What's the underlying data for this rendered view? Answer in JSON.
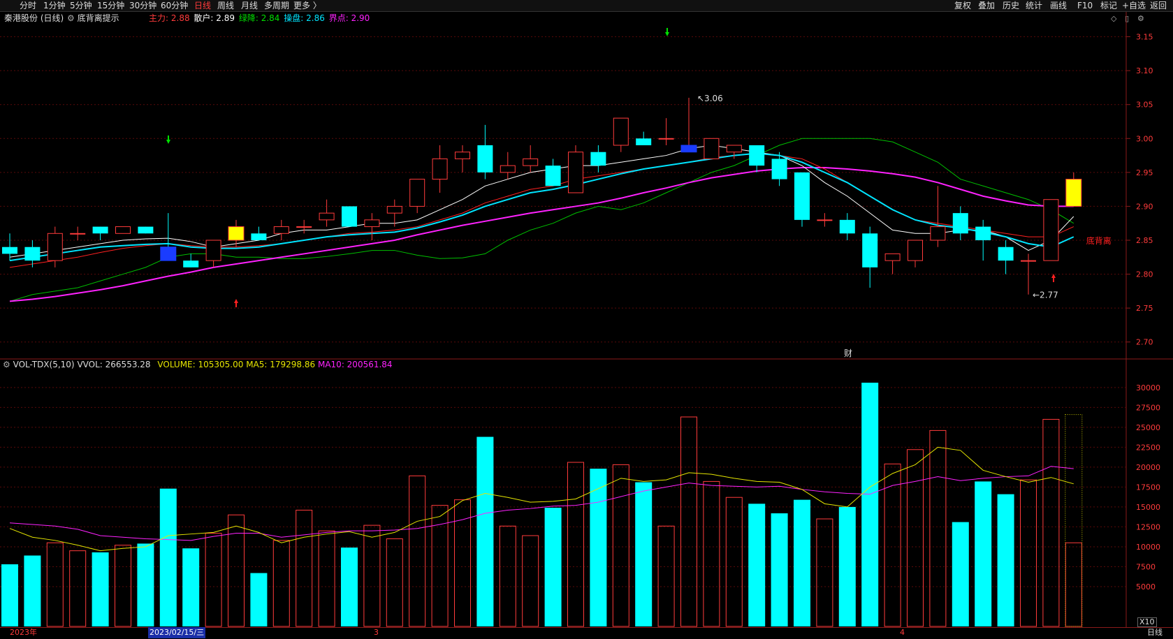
{
  "menu": {
    "left": [
      "分时",
      "1分钟",
      "5分钟",
      "15分钟",
      "30分钟",
      "60分钟",
      "日线",
      "周线",
      "月线",
      "多周期",
      "更多 〉"
    ],
    "active": "日线",
    "right": [
      "复权",
      "叠加",
      "历史",
      "统计",
      "画线",
      "F10",
      "标记",
      "+自选",
      "返回"
    ]
  },
  "header": {
    "stock": "秦港股份 (日线)",
    "indicator": "底背离提示",
    "zhuli_label": "主力:",
    "zhuli_value": "2.88",
    "sanhu_label": "散户:",
    "sanhu_value": "2.89",
    "lvjiang_label": "绿降:",
    "lvjiang_value": "2.84",
    "caopan_label": "操盘:",
    "caopan_value": "2.86",
    "jiedian_label": "界点:",
    "jiedian_value": "2.90"
  },
  "volume_header": {
    "name": "VOL-TDX(5,10)",
    "vvol": "VVOL: 266553.28",
    "volume": "VOLUME: 105305.00",
    "ma5": "MA5: 179298.86",
    "ma10": "MA10: 200561.84"
  },
  "bottom": {
    "year": "2023年",
    "date": "2023/02/15/三",
    "m3": "3",
    "m4": "4",
    "x10": "X10",
    "period": "日线"
  },
  "annotations": {
    "high": "3.06",
    "low": "←2.77",
    "divergence": "底背离",
    "cai": "财"
  },
  "colors": {
    "up": "#ff3b3b",
    "down": "#00ffff",
    "white_line": "#ffffff",
    "red_line": "#ff2020",
    "cyan_line": "#00e5ff",
    "magenta_line": "#ff22ff",
    "green_line": "#00c000",
    "ma5_vol": "#e6e600",
    "ma10_vol": "#ff22ff"
  },
  "chart_data": {
    "type": "candlestick",
    "price_ticks": [
      3.15,
      3.1,
      3.05,
      3.0,
      2.95,
      2.9,
      2.85,
      2.8,
      2.75,
      2.7
    ],
    "price_range": [
      2.675,
      3.165
    ],
    "volume_ticks": [
      30000,
      27500,
      25000,
      22500,
      20000,
      17500,
      15000,
      12500,
      10000,
      7500,
      5000
    ],
    "volume_range": [
      0,
      32000
    ],
    "candles": [
      {
        "o": 2.84,
        "h": 2.86,
        "l": 2.82,
        "c": 2.83,
        "v": 7800
      },
      {
        "o": 2.84,
        "h": 2.85,
        "l": 2.81,
        "c": 2.82,
        "v": 8900
      },
      {
        "o": 2.82,
        "h": 2.87,
        "l": 2.81,
        "c": 2.86,
        "v": 10500
      },
      {
        "o": 2.86,
        "h": 2.87,
        "l": 2.85,
        "c": 2.86,
        "v": 9500
      },
      {
        "o": 2.87,
        "h": 2.87,
        "l": 2.85,
        "c": 2.86,
        "v": 9300
      },
      {
        "o": 2.86,
        "h": 2.87,
        "l": 2.86,
        "c": 2.87,
        "v": 10200
      },
      {
        "o": 2.87,
        "h": 2.87,
        "l": 2.86,
        "c": 2.86,
        "v": 10400
      },
      {
        "o": 2.84,
        "h": 2.89,
        "l": 2.82,
        "c": 2.82,
        "v": 17300
      },
      {
        "o": 2.82,
        "h": 2.83,
        "l": 2.81,
        "c": 2.81,
        "v": 9800
      },
      {
        "o": 2.82,
        "h": 2.85,
        "l": 2.81,
        "c": 2.85,
        "v": 11700
      },
      {
        "o": 2.85,
        "h": 2.88,
        "l": 2.84,
        "c": 2.87,
        "v": 14000
      },
      {
        "o": 2.86,
        "h": 2.87,
        "l": 2.85,
        "c": 2.85,
        "v": 6700
      },
      {
        "o": 2.86,
        "h": 2.88,
        "l": 2.85,
        "c": 2.87,
        "v": 10800
      },
      {
        "o": 2.87,
        "h": 2.88,
        "l": 2.86,
        "c": 2.87,
        "v": 14600
      },
      {
        "o": 2.88,
        "h": 2.91,
        "l": 2.87,
        "c": 2.89,
        "v": 12000
      },
      {
        "o": 2.9,
        "h": 2.9,
        "l": 2.87,
        "c": 2.87,
        "v": 9900
      },
      {
        "o": 2.87,
        "h": 2.89,
        "l": 2.85,
        "c": 2.88,
        "v": 12700
      },
      {
        "o": 2.89,
        "h": 2.91,
        "l": 2.87,
        "c": 2.9,
        "v": 11000
      },
      {
        "o": 2.9,
        "h": 2.94,
        "l": 2.89,
        "c": 2.94,
        "v": 18900
      },
      {
        "o": 2.94,
        "h": 2.99,
        "l": 2.92,
        "c": 2.97,
        "v": 15200
      },
      {
        "o": 2.97,
        "h": 2.99,
        "l": 2.95,
        "c": 2.98,
        "v": 15900
      },
      {
        "o": 2.99,
        "h": 3.02,
        "l": 2.94,
        "c": 2.95,
        "v": 23800
      },
      {
        "o": 2.95,
        "h": 2.98,
        "l": 2.94,
        "c": 2.96,
        "v": 12600
      },
      {
        "o": 2.96,
        "h": 2.99,
        "l": 2.95,
        "c": 2.97,
        "v": 11400
      },
      {
        "o": 2.96,
        "h": 2.97,
        "l": 2.93,
        "c": 2.93,
        "v": 14900
      },
      {
        "o": 2.92,
        "h": 2.99,
        "l": 2.92,
        "c": 2.98,
        "v": 20600
      },
      {
        "o": 2.98,
        "h": 2.99,
        "l": 2.95,
        "c": 2.96,
        "v": 19800
      },
      {
        "o": 2.99,
        "h": 3.03,
        "l": 2.98,
        "c": 3.03,
        "v": 20300
      },
      {
        "o": 3.0,
        "h": 3.01,
        "l": 2.99,
        "c": 2.99,
        "v": 18100
      },
      {
        "o": 3.0,
        "h": 3.03,
        "l": 2.99,
        "c": 3.0,
        "v": 12600
      },
      {
        "o": 2.98,
        "h": 3.06,
        "l": 2.98,
        "c": 2.99,
        "v": 26300
      },
      {
        "o": 2.97,
        "h": 3.0,
        "l": 2.97,
        "c": 3.0,
        "v": 18200
      },
      {
        "o": 2.98,
        "h": 2.99,
        "l": 2.97,
        "c": 2.99,
        "v": 16200
      },
      {
        "o": 2.99,
        "h": 2.99,
        "l": 2.95,
        "c": 2.96,
        "v": 15400
      },
      {
        "o": 2.97,
        "h": 2.98,
        "l": 2.93,
        "c": 2.94,
        "v": 14200
      },
      {
        "o": 2.95,
        "h": 2.95,
        "l": 2.87,
        "c": 2.88,
        "v": 15900
      },
      {
        "o": 2.88,
        "h": 2.89,
        "l": 2.87,
        "c": 2.88,
        "v": 13500
      },
      {
        "o": 2.88,
        "h": 2.89,
        "l": 2.85,
        "c": 2.86,
        "v": 15000
      },
      {
        "o": 2.86,
        "h": 2.87,
        "l": 2.78,
        "c": 2.81,
        "v": 30600
      },
      {
        "o": 2.82,
        "h": 2.83,
        "l": 2.8,
        "c": 2.83,
        "v": 20400
      },
      {
        "o": 2.82,
        "h": 2.85,
        "l": 2.81,
        "c": 2.85,
        "v": 22200
      },
      {
        "o": 2.85,
        "h": 2.93,
        "l": 2.84,
        "c": 2.87,
        "v": 24600
      },
      {
        "o": 2.89,
        "h": 2.9,
        "l": 2.85,
        "c": 2.86,
        "v": 13100
      },
      {
        "o": 2.87,
        "h": 2.88,
        "l": 2.82,
        "c": 2.85,
        "v": 18200
      },
      {
        "o": 2.84,
        "h": 2.85,
        "l": 2.8,
        "c": 2.82,
        "v": 16600
      },
      {
        "o": 2.82,
        "h": 2.83,
        "l": 2.77,
        "c": 2.82,
        "v": 18400
      },
      {
        "o": 2.82,
        "h": 2.91,
        "l": 2.82,
        "c": 2.91,
        "v": 26000
      },
      {
        "o": 2.9,
        "h": 2.95,
        "l": 2.9,
        "c": 2.94,
        "v": 10500
      }
    ],
    "lines": {
      "white": [
        2.825,
        2.83,
        2.835,
        2.84,
        2.845,
        2.85,
        2.852,
        2.853,
        2.848,
        2.84,
        2.845,
        2.85,
        2.86,
        2.865,
        2.865,
        2.87,
        2.875,
        2.875,
        2.88,
        2.895,
        2.91,
        2.93,
        2.94,
        2.95,
        2.955,
        2.96,
        2.96,
        2.965,
        2.97,
        2.975,
        2.985,
        2.99,
        2.985,
        2.98,
        2.975,
        2.96,
        2.935,
        2.915,
        2.89,
        2.865,
        2.86,
        2.86,
        2.865,
        2.865,
        2.855,
        2.835,
        2.85,
        2.885
      ],
      "red": [
        2.81,
        2.815,
        2.82,
        2.825,
        2.832,
        2.838,
        2.842,
        2.845,
        2.842,
        2.84,
        2.84,
        2.842,
        2.845,
        2.85,
        2.855,
        2.86,
        2.862,
        2.865,
        2.87,
        2.88,
        2.89,
        2.905,
        2.915,
        2.925,
        2.93,
        2.94,
        2.945,
        2.95,
        2.955,
        2.96,
        2.965,
        2.972,
        2.975,
        2.978,
        2.975,
        2.97,
        2.955,
        2.935,
        2.915,
        2.895,
        2.88,
        2.875,
        2.87,
        2.865,
        2.86,
        2.855,
        2.855,
        2.87
      ],
      "cyan": [
        2.82,
        2.825,
        2.83,
        2.835,
        2.84,
        2.842,
        2.844,
        2.845,
        2.84,
        2.838,
        2.838,
        2.84,
        2.845,
        2.85,
        2.855,
        2.858,
        2.86,
        2.862,
        2.868,
        2.877,
        2.887,
        2.9,
        2.91,
        2.92,
        2.925,
        2.932,
        2.94,
        2.948,
        2.955,
        2.96,
        2.965,
        2.97,
        2.975,
        2.978,
        2.975,
        2.965,
        2.95,
        2.935,
        2.915,
        2.895,
        2.88,
        2.872,
        2.868,
        2.862,
        2.855,
        2.845,
        2.84,
        2.855
      ],
      "magenta": [
        2.76,
        2.763,
        2.767,
        2.772,
        2.777,
        2.783,
        2.79,
        2.797,
        2.803,
        2.81,
        2.815,
        2.82,
        2.825,
        2.83,
        2.835,
        2.84,
        2.845,
        2.85,
        2.858,
        2.865,
        2.872,
        2.878,
        2.884,
        2.89,
        2.895,
        2.9,
        2.905,
        2.912,
        2.92,
        2.927,
        2.935,
        2.942,
        2.947,
        2.952,
        2.955,
        2.957,
        2.957,
        2.955,
        2.952,
        2.948,
        2.943,
        2.935,
        2.925,
        2.915,
        2.908,
        2.902,
        2.9,
        2.9
      ],
      "green": [
        2.76,
        2.77,
        2.775,
        2.78,
        2.79,
        2.8,
        2.81,
        2.825,
        2.83,
        2.83,
        2.825,
        2.825,
        2.823,
        2.823,
        2.826,
        2.83,
        2.835,
        2.835,
        2.828,
        2.823,
        2.824,
        2.83,
        2.85,
        2.865,
        2.875,
        2.89,
        2.9,
        2.895,
        2.905,
        2.92,
        2.935,
        2.95,
        2.96,
        2.975,
        2.99,
        3.0,
        3.0,
        3.0,
        3.0,
        2.995,
        2.98,
        2.965,
        2.94,
        2.93,
        2.92,
        2.91,
        2.895,
        2.875
      ]
    },
    "vol_ma5": [
      12300,
      11200,
      10800,
      10200,
      9500,
      9800,
      10000,
      11400,
      11600,
      11800,
      12600,
      11800,
      10500,
      11200,
      11600,
      11900,
      11200,
      11800,
      13200,
      13800,
      15800,
      16700,
      16200,
      15600,
      15700,
      16000,
      17300,
      18600,
      18200,
      18400,
      19300,
      19100,
      18600,
      18200,
      18100,
      17200,
      15400,
      15000,
      17500,
      19200,
      20300,
      22500,
      22100,
      19600,
      18800,
      18100,
      18700,
      17900
    ],
    "vol_ma10": [
      13000,
      12800,
      12600,
      12200,
      11400,
      11200,
      11000,
      10900,
      10800,
      11300,
      11700,
      11700,
      11200,
      11500,
      11800,
      12000,
      12000,
      12100,
      12300,
      12800,
      13400,
      14200,
      14600,
      14800,
      15100,
      15200,
      15600,
      16300,
      17000,
      17500,
      18000,
      17700,
      17600,
      17500,
      17600,
      17200,
      16900,
      16700,
      16600,
      17700,
      18200,
      18800,
      18300,
      18600,
      18800,
      18900,
      20100,
      19800
    ]
  }
}
